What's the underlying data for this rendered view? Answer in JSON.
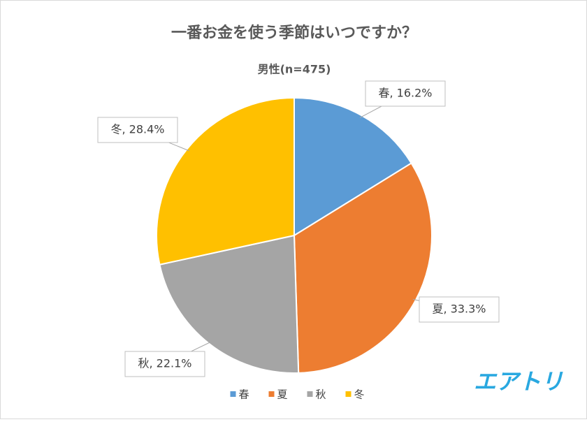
{
  "chart_data": {
    "type": "pie",
    "title": "一番お金を使う季節はいつですか？",
    "subtitle": "男性(n=475)",
    "categories": [
      "春",
      "夏",
      "秋",
      "冬"
    ],
    "values": [
      16.2,
      33.3,
      22.1,
      28.4
    ],
    "value_labels": [
      "春, 16.2%",
      "夏, 33.3%",
      "秋, 22.1%",
      "冬, 28.4%"
    ],
    "colors": [
      "#5b9bd5",
      "#ed7d31",
      "#a5a5a5",
      "#ffc000"
    ],
    "legend": "bottom"
  },
  "logo": "エアトリ"
}
